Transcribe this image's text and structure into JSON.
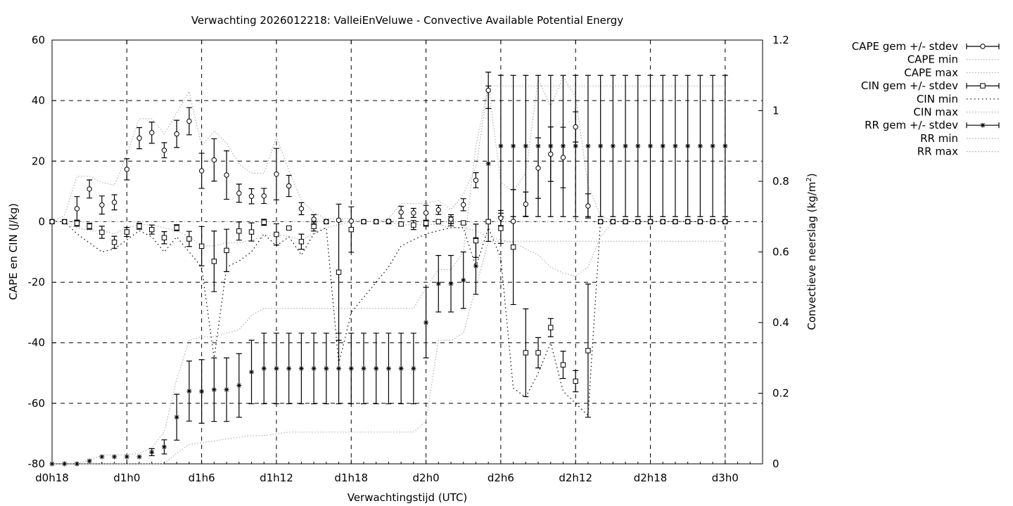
{
  "chart_data": {
    "type": "line",
    "title": "Verwachting 2026012218: ValleiEnVeluwe - Convective Available Potential Energy",
    "xlabel": "Verwachtingstijd (UTC)",
    "ylabel": "CAPE en CIN (J/kg)",
    "y2label": "Convectieve neerslag (kg/m²)",
    "y2label_main": "Convectieve neerslag (kg/m",
    "y2label_sup": "2",
    "y2label_end": ")",
    "x_range_hours": [
      0,
      57
    ],
    "ylim": [
      -80,
      60
    ],
    "y2lim": [
      0,
      1.2
    ],
    "x_ticks": [
      {
        "h": 0,
        "label": "d0h18"
      },
      {
        "h": 6,
        "label": "d1h0"
      },
      {
        "h": 12,
        "label": "d1h6"
      },
      {
        "h": 18,
        "label": "d1h12"
      },
      {
        "h": 24,
        "label": "d1h18"
      },
      {
        "h": 30,
        "label": "d2h0"
      },
      {
        "h": 36,
        "label": "d2h6"
      },
      {
        "h": 42,
        "label": "d2h12"
      },
      {
        "h": 48,
        "label": "d2h18"
      },
      {
        "h": 54,
        "label": "d3h0"
      }
    ],
    "y_ticks": [
      "60",
      "40",
      "20",
      "0",
      "-20",
      "-40",
      "-60",
      "-80"
    ],
    "y2_ticks": [
      "1.2",
      "1",
      "0.8",
      "0.6",
      "0.4",
      "0.2",
      "0"
    ],
    "grid": true,
    "legend_position": "outside-right",
    "legend": [
      {
        "label": "CAPE gem +/- stdev",
        "style": "errorbar-circle"
      },
      {
        "label": "CAPE min",
        "style": "dotted-grey"
      },
      {
        "label": "CAPE max",
        "style": "dotted-grey"
      },
      {
        "label": "CIN gem +/- stdev",
        "style": "errorbar-square"
      },
      {
        "label": "CIN min",
        "style": "dotted-black"
      },
      {
        "label": "CIN max",
        "style": "dotted-grey"
      },
      {
        "label": "RR gem +/- stdev",
        "style": "errorbar-star"
      },
      {
        "label": "RR min",
        "style": "dotted-grey"
      },
      {
        "label": "RR max",
        "style": "dotted-grey"
      }
    ],
    "x_hours": [
      0,
      1,
      2,
      3,
      4,
      5,
      6,
      7,
      8,
      9,
      10,
      11,
      12,
      13,
      14,
      15,
      16,
      17,
      18,
      19,
      20,
      21,
      22,
      23,
      24,
      25,
      26,
      27,
      28,
      29,
      30,
      31,
      32,
      33,
      34,
      35,
      36,
      37,
      38,
      39,
      40,
      41,
      42,
      43,
      44,
      45,
      46,
      47,
      48,
      49,
      50,
      51,
      52,
      53,
      54
    ],
    "series": [
      {
        "name": "CAPE gem +/- stdev",
        "axis": "y1",
        "marker": "circle",
        "mean": [
          0,
          0,
          4.3,
          10.8,
          5.5,
          6.4,
          17.3,
          27.6,
          29.4,
          23.6,
          29.0,
          33.2,
          16.8,
          20.4,
          15.4,
          9.4,
          8.4,
          8.5,
          15.7,
          11.8,
          4.3,
          0.8,
          0,
          0.5,
          0.2,
          0,
          0,
          0.1,
          3.1,
          2.9,
          2.9,
          3.9,
          0.8,
          5.6,
          13.7,
          43.4,
          1.2,
          0.1,
          5.8,
          17.7,
          22.3,
          21.2,
          31.3,
          5.2,
          0,
          0,
          0,
          0,
          0,
          0,
          0,
          0,
          0,
          0,
          0
        ],
        "stdev": [
          0,
          0,
          4,
          3,
          3,
          2.5,
          3.5,
          3.5,
          3.5,
          2.5,
          4.5,
          4.5,
          5.8,
          7,
          8,
          3,
          2.5,
          2.5,
          8.5,
          3.5,
          2,
          1.5,
          0,
          0,
          0,
          0,
          0,
          0,
          2,
          1.5,
          2.5,
          1.5,
          1.5,
          2,
          2.5,
          6,
          2.5,
          0,
          4,
          10,
          9,
          10,
          5,
          4,
          0,
          0,
          0,
          0,
          0,
          0,
          0,
          0,
          0,
          0,
          0
        ]
      },
      {
        "name": "CAPE min",
        "axis": "y1",
        "values": [
          0,
          0,
          -2,
          -3,
          -3,
          -4,
          -2,
          -1,
          -1,
          -2,
          -3,
          -5,
          -8,
          -8,
          -7,
          -7,
          -6,
          -5,
          -4,
          -5,
          -6,
          -4,
          -2,
          -1,
          0,
          0,
          0,
          0,
          -1,
          -1,
          -1,
          -1,
          -2,
          -2,
          -3,
          -5,
          -6,
          -7,
          -9,
          -11,
          -15,
          -17,
          -18,
          -15,
          -5,
          0,
          0,
          0,
          0,
          0,
          0,
          0,
          0,
          0,
          0
        ]
      },
      {
        "name": "CAPE max",
        "axis": "y1",
        "values": [
          0,
          2,
          15,
          15,
          13,
          12,
          22,
          34,
          34,
          29,
          36,
          43,
          25,
          30,
          26,
          19,
          16,
          16,
          28,
          17,
          7,
          3,
          1,
          1,
          1,
          0,
          0,
          1,
          6,
          6,
          6,
          7,
          4,
          9,
          18,
          45,
          13,
          10,
          16,
          47,
          38,
          48,
          41,
          12,
          2,
          0,
          0,
          0,
          0,
          0,
          0,
          0,
          0,
          0,
          0
        ]
      },
      {
        "name": "CIN gem +/- stdev",
        "axis": "y1",
        "marker": "square",
        "mean": [
          0,
          0,
          -0.5,
          -1.5,
          -3.5,
          -6.8,
          -3.4,
          -1.5,
          -2.6,
          -5.3,
          -2.0,
          -5.7,
          -8.1,
          -13.1,
          -9.5,
          -3.1,
          -3.4,
          -0.2,
          -4.2,
          -2.1,
          -6.6,
          -1.6,
          0,
          -16.7,
          -2.6,
          0,
          0,
          0,
          -0.8,
          -1.1,
          -0.5,
          0,
          0.1,
          -0.4,
          -6.3,
          0,
          -2.2,
          -8.4,
          -43.3,
          -43.3,
          -35.0,
          -47.3,
          -52.7,
          -42.6,
          0,
          0,
          0,
          0,
          0,
          0,
          0,
          0,
          0,
          0,
          0
        ],
        "stdev": [
          0,
          0,
          1,
          1,
          2,
          2,
          1.5,
          1,
          1.5,
          2,
          1,
          2.5,
          6.5,
          10,
          7,
          3,
          3,
          1,
          3.5,
          0.5,
          2.5,
          1.5,
          0,
          22.5,
          7.5,
          0,
          0,
          0,
          0.5,
          1.5,
          1,
          0,
          1.5,
          0.5,
          5.5,
          0,
          5,
          19,
          14.5,
          5,
          3,
          4.5,
          3.5,
          22,
          0,
          0,
          0,
          0,
          0,
          0,
          0,
          0,
          0,
          0,
          0
        ]
      },
      {
        "name": "CIN min",
        "axis": "y1",
        "values": [
          0,
          0,
          -4,
          -7,
          -10,
          -9,
          -6,
          -3,
          -5,
          -10,
          -5,
          -10,
          -15,
          -45,
          -15,
          -13,
          -10,
          -4,
          -8,
          -5,
          -11,
          -4,
          -2,
          -47,
          -30,
          -25,
          -20,
          -15,
          -8,
          -6,
          -4,
          -3,
          -2,
          -2,
          -15,
          -2,
          -12,
          -55,
          -58,
          -50,
          -40,
          -56,
          -60,
          -64,
          0,
          0,
          0,
          0,
          0,
          0,
          0,
          0,
          0,
          0,
          0
        ]
      },
      {
        "name": "CIN max",
        "axis": "y1",
        "values": [
          0,
          0,
          0,
          0,
          0,
          0,
          0,
          0,
          0,
          0,
          0,
          0,
          0,
          0,
          0,
          0,
          0,
          0,
          0,
          0,
          0,
          0,
          0,
          0,
          0,
          0,
          0,
          0,
          0,
          0,
          0,
          0,
          0,
          0,
          0,
          0,
          0,
          0,
          0,
          0,
          0,
          0,
          0,
          0,
          0,
          0,
          0,
          0,
          0,
          0,
          0,
          0,
          0,
          0,
          0
        ]
      },
      {
        "name": "RR gem +/- stdev",
        "axis": "y2",
        "marker": "star",
        "mean": [
          0,
          0,
          0,
          0.008,
          0.02,
          0.02,
          0.02,
          0.02,
          0.033,
          0.048,
          0.132,
          0.206,
          0.205,
          0.21,
          0.21,
          0.222,
          0.26,
          0.27,
          0.27,
          0.27,
          0.27,
          0.27,
          0.27,
          0.27,
          0.27,
          0.27,
          0.27,
          0.27,
          0.27,
          0.27,
          0.4,
          0.51,
          0.51,
          0.52,
          0.56,
          0.85,
          0.9,
          0.9,
          0.9,
          0.9,
          0.9,
          0.9,
          0.9,
          0.9,
          0.9,
          0.9,
          0.9,
          0.9,
          0.9,
          0.9,
          0.9,
          0.9,
          0.9,
          0.9,
          0.9
        ],
        "stdev": [
          0,
          0,
          0,
          0,
          0,
          0,
          0,
          0,
          0.01,
          0.02,
          0.065,
          0.085,
          0.09,
          0.09,
          0.09,
          0.09,
          0.09,
          0.1,
          0.1,
          0.1,
          0.1,
          0.1,
          0.1,
          0.1,
          0.1,
          0.1,
          0.1,
          0.1,
          0.1,
          0.1,
          0.1,
          0.08,
          0.08,
          0.08,
          0.08,
          0.22,
          0.2,
          0.2,
          0.2,
          0.2,
          0.2,
          0.2,
          0.2,
          0.2,
          0.2,
          0.2,
          0.2,
          0.2,
          0.2,
          0.2,
          0.2,
          0.2,
          0.2,
          0.2,
          0.2
        ]
      },
      {
        "name": "RR min",
        "axis": "y2",
        "values": [
          0,
          0,
          0,
          0,
          0,
          0,
          0,
          0,
          0,
          0,
          0.03,
          0.055,
          0.06,
          0.065,
          0.07,
          0.075,
          0.08,
          0.08,
          0.085,
          0.09,
          0.09,
          0.09,
          0.09,
          0.09,
          0.09,
          0.09,
          0.09,
          0.09,
          0.09,
          0.09,
          0.12,
          0.35,
          0.35,
          0.37,
          0.5,
          0.63,
          0.63,
          0.63,
          0.63,
          0.63,
          0.63,
          0.63,
          0.63,
          0.63,
          0.63,
          0.63,
          0.63,
          0.63,
          0.63,
          0.63,
          0.63,
          0.63,
          0.63,
          0.63,
          0.63
        ]
      },
      {
        "name": "RR max",
        "axis": "y2",
        "values": [
          0,
          0,
          0,
          0.01,
          0.025,
          0.025,
          0.025,
          0.03,
          0.045,
          0.09,
          0.24,
          0.35,
          0.36,
          0.36,
          0.37,
          0.38,
          0.42,
          0.44,
          0.44,
          0.44,
          0.44,
          0.44,
          0.44,
          0.44,
          0.44,
          0.44,
          0.44,
          0.44,
          0.44,
          0.44,
          0.5,
          0.55,
          0.55,
          0.6,
          0.9,
          1.07,
          1.07,
          1.07,
          1.07,
          1.07,
          1.07,
          1.07,
          1.07,
          1.07,
          1.07,
          1.07,
          1.07,
          1.07,
          1.07,
          1.07,
          1.07,
          1.07,
          1.07,
          1.07,
          1.07
        ]
      }
    ]
  }
}
